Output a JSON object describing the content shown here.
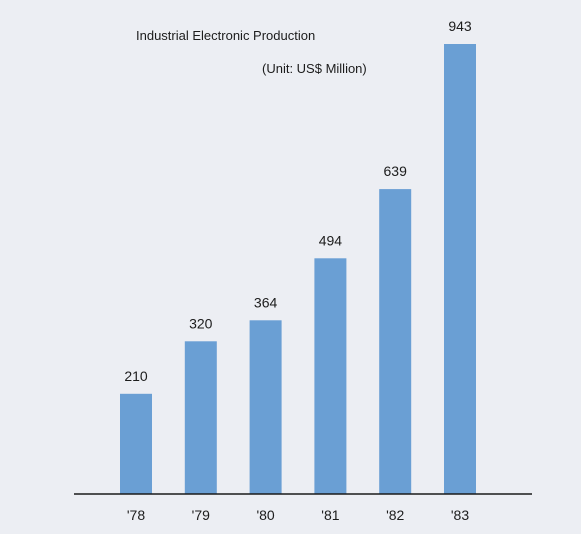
{
  "chart_data": {
    "type": "bar",
    "title": "Industrial Electronic Production",
    "subtitle": "(Unit: US$ Million)",
    "categories": [
      "'78",
      "'79",
      "'80",
      "'81",
      "'82",
      "'83"
    ],
    "values": [
      210,
      320,
      364,
      494,
      639,
      943
    ],
    "ylim": [
      0,
      943
    ],
    "grid": false,
    "legend": "none",
    "bar_color": "#6a9fd4",
    "axis_color": "#1a1a1a",
    "background_color": "#eceef3"
  }
}
